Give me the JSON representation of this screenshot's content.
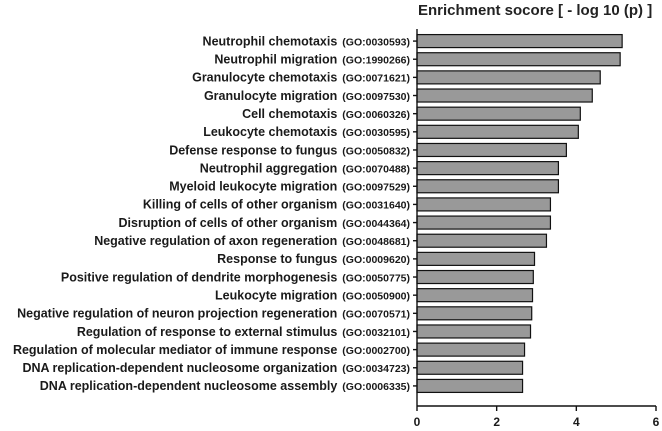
{
  "chart_data": {
    "type": "bar",
    "orientation": "horizontal",
    "title": "Enrichment socore [ - log 10 (p) ]",
    "xlabel": "",
    "ylabel": "",
    "xlim": [
      0,
      6
    ],
    "x_ticks": [
      "0",
      "2",
      "4",
      "6"
    ],
    "bar_color": "#999999",
    "categories": [
      {
        "term": "Neutrophil chemotaxis",
        "go_id": "(GO:0030593)"
      },
      {
        "term": "Neutrophil migration",
        "go_id": "(GO:1990266)"
      },
      {
        "term": "Granulocyte chemotaxis",
        "go_id": "(GO:0071621)"
      },
      {
        "term": "Granulocyte migration",
        "go_id": "(GO:0097530)"
      },
      {
        "term": "Cell chemotaxis",
        "go_id": "(GO:0060326)"
      },
      {
        "term": "Leukocyte chemotaxis",
        "go_id": "(GO:0030595)"
      },
      {
        "term": "Defense response to fungus",
        "go_id": "(GO:0050832)"
      },
      {
        "term": "Neutrophil aggregation",
        "go_id": "(GO:0070488)"
      },
      {
        "term": "Myeloid leukocyte migration",
        "go_id": "(GO:0097529)"
      },
      {
        "term": "Killing of cells of other organism",
        "go_id": "(GO:0031640)"
      },
      {
        "term": "Disruption of cells of other organism",
        "go_id": "(GO:0044364)"
      },
      {
        "term": "Negative regulation of axon regeneration",
        "go_id": "(GO:0048681)"
      },
      {
        "term": "Response to fungus",
        "go_id": "(GO:0009620)"
      },
      {
        "term": "Positive regulation of dendrite morphogenesis",
        "go_id": "(GO:0050775)"
      },
      {
        "term": "Leukocyte migration",
        "go_id": "(GO:0050900)"
      },
      {
        "term": "Negative regulation of neuron projection regeneration",
        "go_id": "(GO:0070571)"
      },
      {
        "term": "Regulation of response to external stimulus",
        "go_id": "(GO:0032101)"
      },
      {
        "term": "Regulation of  molecular mediator of immune response",
        "go_id": "(GO:0002700)"
      },
      {
        "term": "DNA replication-dependent nucleosome organization",
        "go_id": "(GO:0034723)"
      },
      {
        "term": "DNA replication-dependent nucleosome assembly",
        "go_id": "(GO:0006335)"
      }
    ],
    "values": [
      5.15,
      5.1,
      4.6,
      4.4,
      4.1,
      4.05,
      3.75,
      3.55,
      3.55,
      3.35,
      3.35,
      3.25,
      2.95,
      2.92,
      2.9,
      2.88,
      2.85,
      2.7,
      2.65,
      2.65
    ]
  }
}
